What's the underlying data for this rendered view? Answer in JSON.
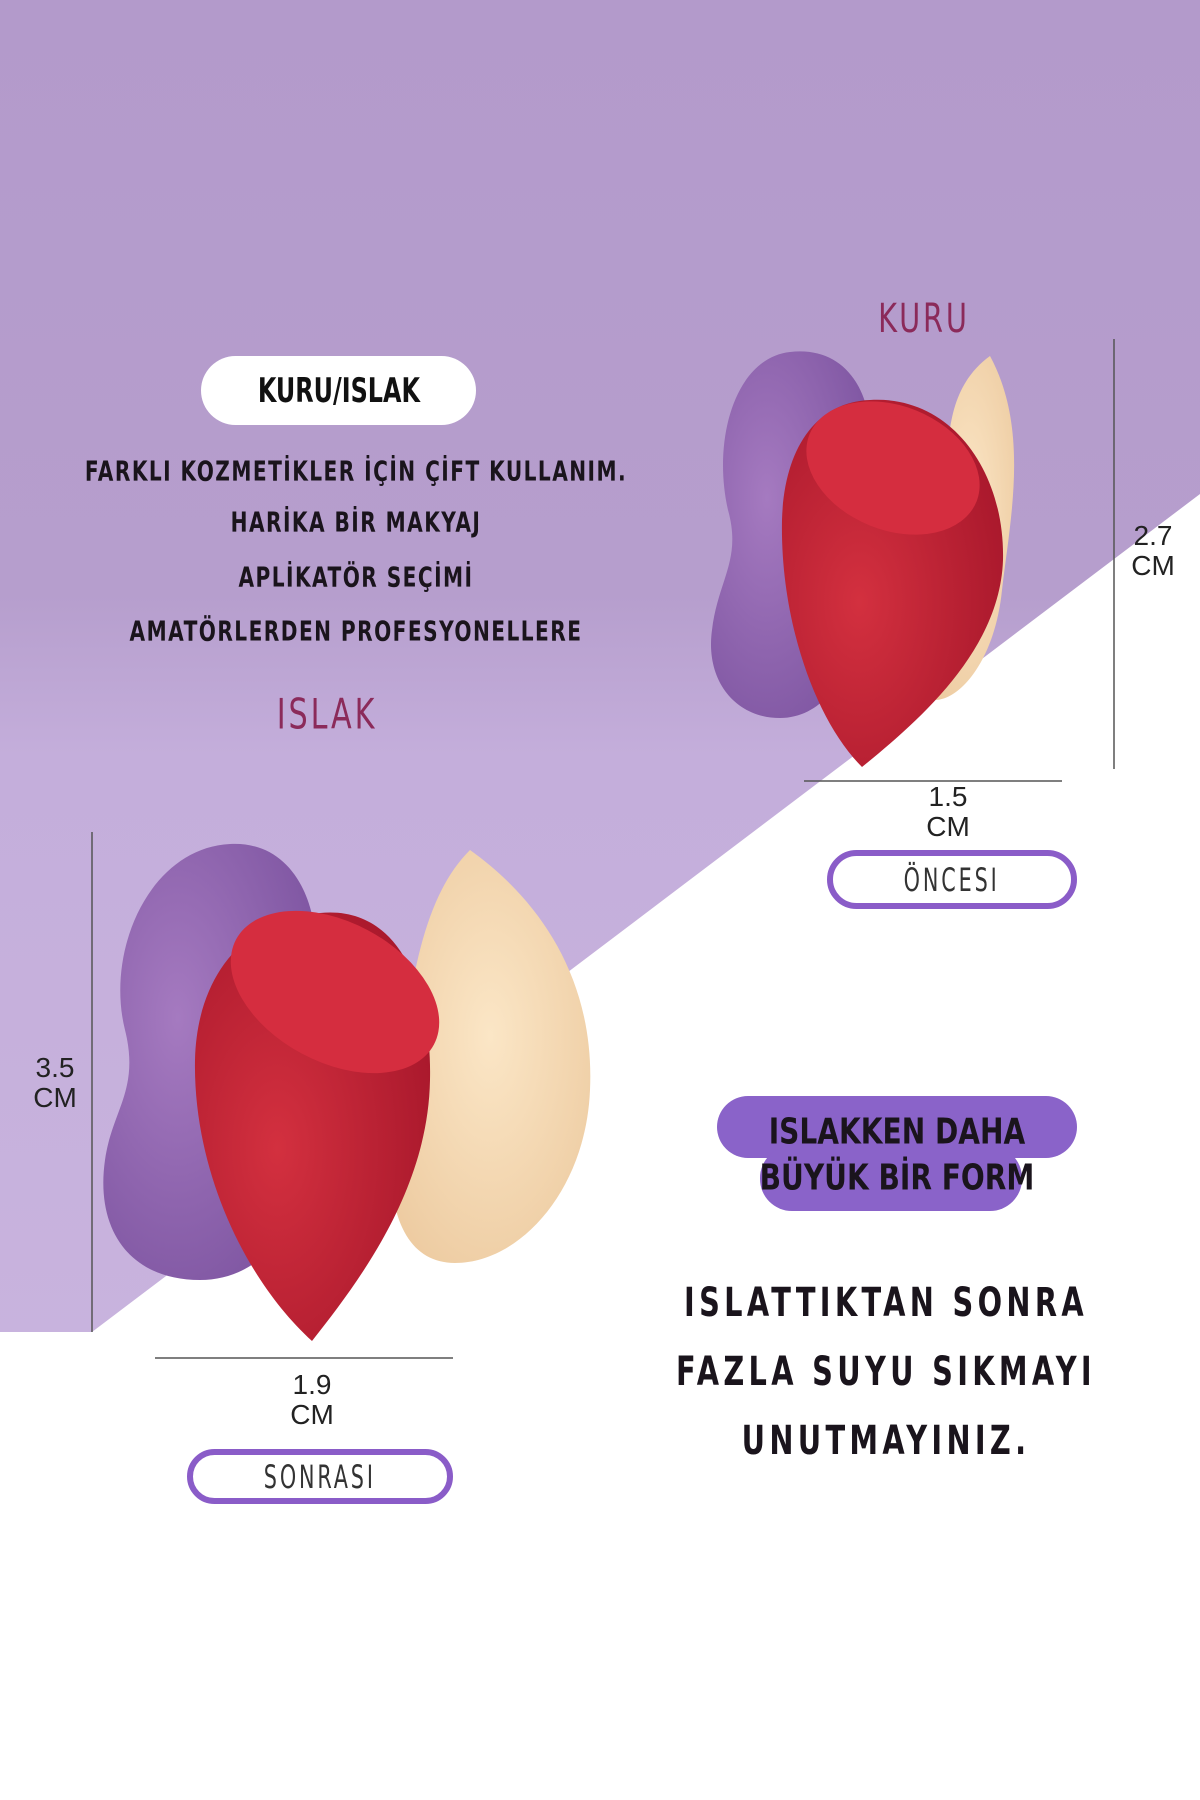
{
  "colors": {
    "background_purple": "#b59dcc",
    "background_light_purple": "#c6b0dc",
    "background_white": "#ffffff",
    "accent_magenta": "#8b2a5a",
    "pill_purple": "#8a63c9",
    "pill_border": "#8a5cc8",
    "sponge_red": "#c8253a",
    "sponge_purple": "#9e6fb8",
    "sponge_beige": "#f7dcb6"
  },
  "header": {
    "badge": "KURU/ISLAK",
    "description": [
      "FARKLI KOZMETİKLER İÇİN ÇİFT KULLANIM.",
      "HARİKA BİR MAKYAJ",
      "APLİKATÖR SEÇİMİ",
      "AMATÖRLERDEN PROFESYONELLERE"
    ]
  },
  "dry": {
    "label": "KURU",
    "height": "2.7",
    "height_unit": "CM",
    "width": "1.5",
    "width_unit": "CM",
    "state": "ÖNCESI"
  },
  "wet": {
    "label": "ISLAK",
    "height": "3.5",
    "height_unit": "CM",
    "width": "1.9",
    "width_unit": "CM",
    "state": "SONRASI"
  },
  "highlight": {
    "line1": "ISLAKKEN DAHA",
    "line2": "BÜYÜK BİR FORM"
  },
  "instructions": [
    "ISLATTIKTAN SONRA",
    "FAZLA SUYU SIKMAYI",
    "UNUTMAYINIZ."
  ]
}
